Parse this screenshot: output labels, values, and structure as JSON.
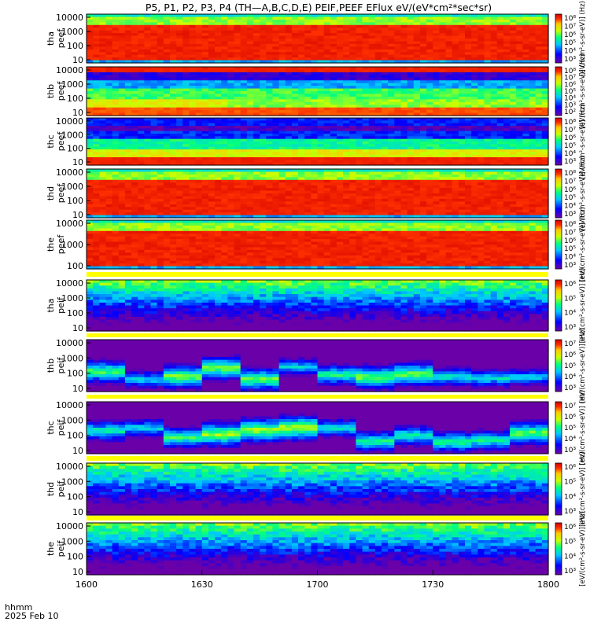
{
  "title": "P5, P1, P2, P3, P4 (TH—A,B,C,D,E) PEIF,PEEF EFlux eV/(eV*cm²*sec*sr)",
  "cbar_label": "[eV/(cm²-s-sr-eV)] (Hz)",
  "time_axis": {
    "ticks": [
      "1600",
      "1630",
      "1700",
      "1730",
      "1800"
    ],
    "label_line1": "hhmm",
    "label_line2": "2025 Feb 10"
  },
  "chart_data": [
    {
      "type": "heatmap",
      "probe": "tha",
      "product": "peef",
      "yticks": [
        "10000",
        "1000",
        "100",
        "10"
      ],
      "cbar_ticks": [
        "10⁸",
        "10⁷",
        "10⁶",
        "10⁵",
        "10⁴",
        "10³"
      ],
      "style": "hot"
    },
    {
      "type": "heatmap",
      "probe": "thb",
      "product": "peef",
      "yticks": [
        "10000",
        "1000",
        "100",
        "10"
      ],
      "cbar_ticks": [
        "10⁸",
        "10⁷",
        "10⁶",
        "10⁵",
        "10⁴",
        "10³",
        "10²"
      ],
      "style": "layered"
    },
    {
      "type": "heatmap",
      "probe": "thc",
      "product": "peef",
      "yticks": [
        "10000",
        "1000",
        "100",
        "10"
      ],
      "cbar_ticks": [
        "10⁸",
        "10⁷",
        "10⁶",
        "10⁵",
        "10⁴",
        "10³"
      ],
      "style": "layered2"
    },
    {
      "type": "heatmap",
      "probe": "thd",
      "product": "peef",
      "yticks": [
        "10000",
        "1000",
        "100",
        "10"
      ],
      "cbar_ticks": [
        "10⁸",
        "10⁷",
        "10⁶",
        "10⁵",
        "10⁴",
        "10³"
      ],
      "style": "hot"
    },
    {
      "type": "heatmap",
      "probe": "the",
      "product": "peef",
      "yticks": [
        "10000",
        "1000",
        "100"
      ],
      "cbar_ticks": [
        "10⁸",
        "10⁷",
        "10⁶",
        "10⁵",
        "10⁴",
        "10³"
      ],
      "style": "hot"
    },
    {
      "type": "heatmap",
      "probe": "tha",
      "product": "peif",
      "yticks": [
        "10000",
        "1000",
        "100",
        "10"
      ],
      "cbar_ticks": [
        "10⁶",
        "10⁵",
        "10⁴",
        "10³"
      ],
      "style": "ion"
    },
    {
      "type": "heatmap",
      "probe": "thb",
      "product": "peif",
      "yticks": [
        "10000",
        "1000",
        "100",
        "10"
      ],
      "cbar_ticks": [
        "10⁷",
        "10⁶",
        "10⁵",
        "10⁴",
        "10³"
      ],
      "style": "ionblock"
    },
    {
      "type": "heatmap",
      "probe": "thc",
      "product": "peif",
      "yticks": [
        "10000",
        "1000",
        "100",
        "10"
      ],
      "cbar_ticks": [
        "10⁷",
        "10⁶",
        "10⁵",
        "10⁴",
        "10³"
      ],
      "style": "ionblock"
    },
    {
      "type": "heatmap",
      "probe": "thd",
      "product": "peif",
      "yticks": [
        "10000",
        "1000",
        "100",
        "10"
      ],
      "cbar_ticks": [
        "10⁶",
        "10⁵",
        "10⁴",
        "10³"
      ],
      "style": "ion"
    },
    {
      "type": "heatmap",
      "probe": "the",
      "product": "peif",
      "yticks": [
        "10000",
        "1000",
        "100",
        "10"
      ],
      "cbar_ticks": [
        "10⁶",
        "10⁵",
        "10⁴",
        "10³"
      ],
      "style": "ion"
    }
  ]
}
